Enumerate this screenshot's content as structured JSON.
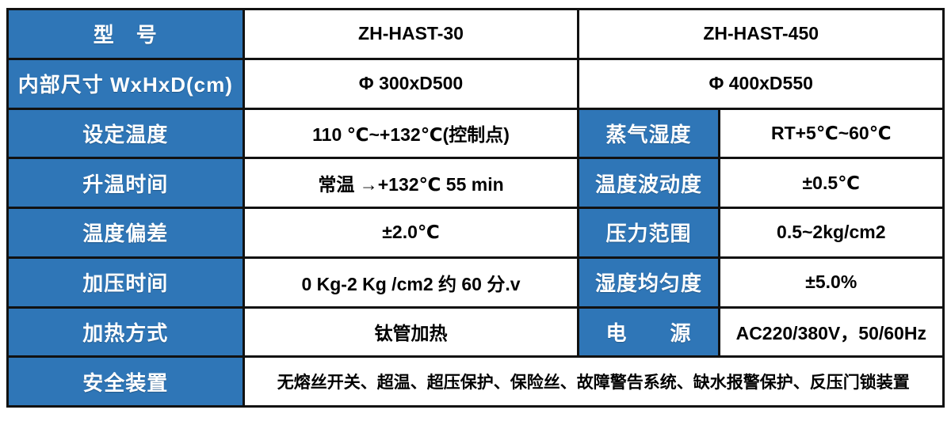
{
  "colors": {
    "header_blue": "#2F76B7",
    "border": "#111111",
    "label_text": "#FFFFFF",
    "value_text": "#000000",
    "background": "#FFFFFF"
  },
  "spec_table": {
    "rows": [
      {
        "label": "型　号",
        "v1": "ZH-HAST-30",
        "v2": "ZH-HAST-450"
      },
      {
        "label": "内部尺寸 WxHxD(cm)",
        "v1": "Φ 300xD500",
        "v2": "Φ 400xD550"
      },
      {
        "label": "设定温度",
        "v1": "110 ℃~+132℃(控制点)",
        "label2": "蒸气湿度",
        "v2": "RT+5℃~60℃"
      },
      {
        "label": "升温时间",
        "v1": "常温 →+132℃ 55 min",
        "label2": "温度波动度",
        "v2": "±0.5℃"
      },
      {
        "label": "温度偏差",
        "v1": "±2.0℃",
        "label2": "压力范围",
        "v2": "0.5~2kg/cm2"
      },
      {
        "label": "加压时间",
        "v1": "0 Kg-2 Kg /cm2 约 60 分.v",
        "label2": "湿度均匀度",
        "v2": "±5.0%"
      },
      {
        "label": "加热方式",
        "v1": "钛管加热",
        "label2": "电　　源",
        "v2": "AC220/380V，50/60Hz"
      },
      {
        "label": "安全装置",
        "v1": "无熔丝开关、超温、超压保护、保险丝、故障警告系统、缺水报警保护、反压门锁装置"
      }
    ]
  }
}
